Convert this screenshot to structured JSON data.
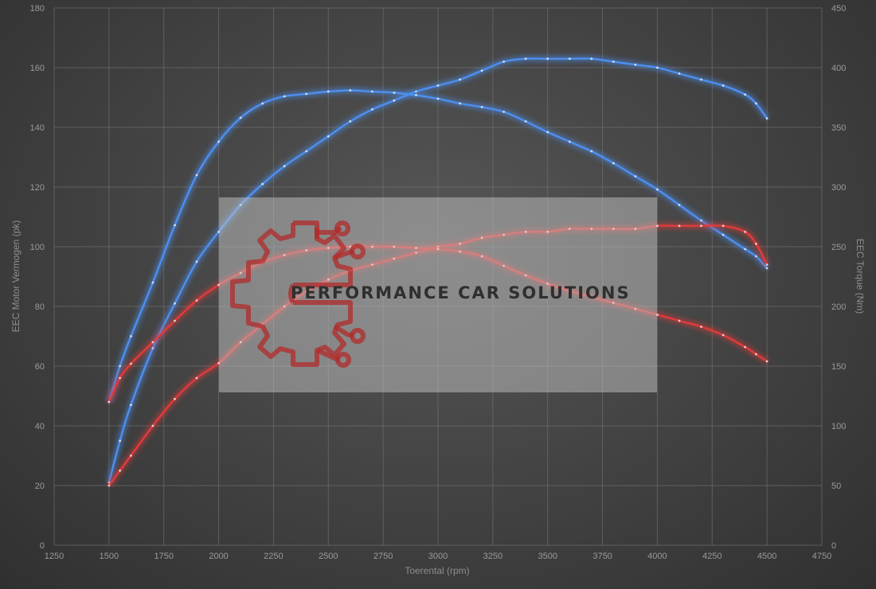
{
  "chart_data": {
    "type": "line",
    "xlabel": "Toerental (rpm)",
    "ylabel_left": "EEC Motor Vermogen (pk)",
    "ylabel_right": "EEC Torque (Nm)",
    "xlim": [
      1250,
      4750
    ],
    "x_ticks": [
      1250,
      1500,
      1750,
      2000,
      2250,
      2500,
      2750,
      3000,
      3250,
      3500,
      3750,
      4000,
      4250,
      4500,
      4750
    ],
    "ylim_left": [
      0,
      180
    ],
    "y_ticks_left": [
      0,
      20,
      40,
      60,
      80,
      100,
      120,
      140,
      160,
      180
    ],
    "ylim_right": [
      0,
      450
    ],
    "y_ticks_right": [
      0,
      50,
      100,
      150,
      200,
      250,
      300,
      350,
      400,
      450
    ],
    "grid": true,
    "series": [
      {
        "axis": "left",
        "color": "#4d8ff0",
        "x": [
          1500,
          1550,
          1600,
          1700,
          1800,
          1900,
          2000,
          2100,
          2200,
          2300,
          2400,
          2500,
          2600,
          2700,
          2800,
          2900,
          3000,
          3100,
          3200,
          3300,
          3400,
          3500,
          3600,
          3700,
          3800,
          3900,
          4000,
          4100,
          4200,
          4300,
          4400,
          4450,
          4500
        ],
        "y": [
          21,
          35,
          47,
          66,
          81,
          95,
          105,
          114,
          121,
          127,
          132,
          137,
          142,
          146,
          149,
          152,
          154,
          156,
          159,
          162,
          163,
          163,
          163,
          163,
          162,
          161,
          160,
          158,
          156,
          154,
          151,
          148,
          143
        ]
      },
      {
        "axis": "right",
        "color": "#4d8ff0",
        "x": [
          1500,
          1550,
          1600,
          1700,
          1800,
          1900,
          2000,
          2100,
          2200,
          2300,
          2400,
          2500,
          2600,
          2700,
          2800,
          2900,
          3000,
          3100,
          3200,
          3300,
          3400,
          3500,
          3600,
          3700,
          3800,
          3900,
          4000,
          4100,
          4200,
          4300,
          4400,
          4450,
          4500
        ],
        "y": [
          120,
          150,
          175,
          220,
          268,
          310,
          338,
          358,
          370,
          376,
          378,
          380,
          381,
          380,
          379,
          377,
          374,
          370,
          367,
          363,
          355,
          346,
          338,
          330,
          320,
          309,
          298,
          285,
          272,
          260,
          248,
          242,
          232
        ]
      },
      {
        "axis": "left",
        "color": "#e23a3a",
        "x": [
          1500,
          1550,
          1600,
          1700,
          1800,
          1900,
          2000,
          2100,
          2200,
          2300,
          2400,
          2500,
          2600,
          2700,
          2800,
          2900,
          3000,
          3100,
          3200,
          3300,
          3400,
          3500,
          3600,
          3700,
          3800,
          3900,
          4000,
          4100,
          4200,
          4300,
          4400,
          4450,
          4500
        ],
        "y": [
          20,
          25,
          30,
          40,
          49,
          56,
          61,
          68,
          74,
          80,
          85,
          89,
          92,
          94,
          96,
          98,
          100,
          101,
          103,
          104,
          105,
          105,
          106,
          106,
          106,
          106,
          107,
          107,
          107,
          107,
          105,
          101,
          94
        ]
      },
      {
        "axis": "right",
        "color": "#e23a3a",
        "x": [
          1500,
          1550,
          1600,
          1700,
          1800,
          1900,
          2000,
          2100,
          2200,
          2300,
          2400,
          2500,
          2600,
          2700,
          2800,
          2900,
          3000,
          3100,
          3200,
          3300,
          3400,
          3500,
          3600,
          3700,
          3800,
          3900,
          4000,
          4100,
          4200,
          4300,
          4400,
          4450,
          4500
        ],
        "y": [
          120,
          140,
          152,
          170,
          188,
          205,
          218,
          228,
          237,
          243,
          247,
          249,
          250,
          250,
          250,
          249,
          248,
          246,
          242,
          234,
          226,
          219,
          213,
          208,
          203,
          198,
          193,
          188,
          183,
          176,
          166,
          160,
          154
        ]
      }
    ]
  },
  "watermark": {
    "text": "PERFORMANCE CAR SOLUTIONS",
    "logo_icon": "gear-circuit-logo-icon",
    "logo_color": "#b12b2b"
  }
}
